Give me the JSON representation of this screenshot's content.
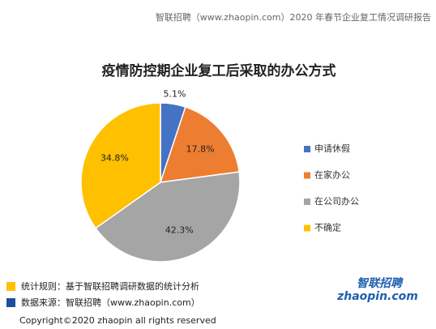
{
  "header": "智联招聘（www.zhaopin.com）2020 年春节企业复工情况调研报告",
  "chart_data": {
    "type": "pie",
    "title": "疫情防控期企业复工后采取的办公方式",
    "categories": [
      "申请休假",
      "在家办公",
      "在公司办公",
      "不确定"
    ],
    "values": [
      5.1,
      17.8,
      42.3,
      34.8
    ],
    "value_labels": [
      "5.1%",
      "17.8%",
      "42.3%",
      "34.8%"
    ],
    "colors": [
      "#4472c4",
      "#ed7d31",
      "#a5a5a5",
      "#ffc000"
    ]
  },
  "notes": [
    {
      "text": "统计规则：基于智联招聘调研数据的统计分析",
      "color": "#ffc000"
    },
    {
      "text": "数据来源：智联招聘（www.zhaopin.com）",
      "color": "#1f4e9c"
    }
  ],
  "logo": {
    "name": "智联招聘",
    "domain": "zhaopin.com"
  },
  "copyright": "Copyright©2020 zhaopin all rights reserved"
}
